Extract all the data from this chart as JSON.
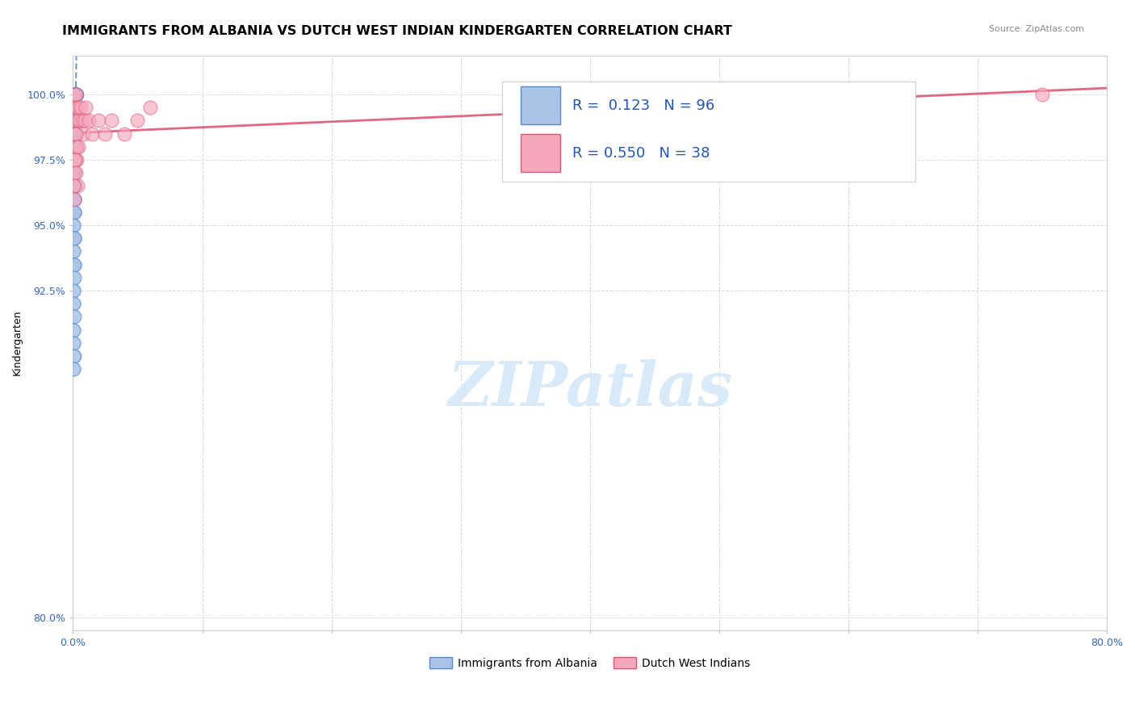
{
  "title": "IMMIGRANTS FROM ALBANIA VS DUTCH WEST INDIAN KINDERGARTEN CORRELATION CHART",
  "source": "Source: ZipAtlas.com",
  "ylabel": "Kindergarten",
  "xlim": [
    0.0,
    80.0
  ],
  "ylim": [
    79.5,
    101.5
  ],
  "xticks": [
    0.0,
    10.0,
    20.0,
    30.0,
    40.0,
    50.0,
    60.0,
    70.0,
    80.0
  ],
  "xticklabels": [
    "0.0%",
    "",
    "",
    "",
    "",
    "",
    "",
    "",
    "80.0%"
  ],
  "yticks": [
    80.0,
    92.5,
    95.0,
    97.5,
    100.0
  ],
  "yticklabels": [
    "80.0%",
    "92.5%",
    "95.0%",
    "97.5%",
    "100.0%"
  ],
  "albania_R": 0.123,
  "albania_N": 96,
  "dutch_R": 0.55,
  "dutch_N": 38,
  "albania_color": "#aac4e8",
  "dutch_color": "#f5a8bc",
  "albania_edge_color": "#5588cc",
  "dutch_edge_color": "#e05575",
  "albania_line_color": "#5588cc",
  "dutch_line_color": "#e05575",
  "legend_R_color": "#2255bb",
  "tick_color": "#3366cc",
  "background_color": "#ffffff",
  "grid_color": "#cccccc",
  "watermark_text": "ZIPatlas",
  "watermark_color": "#d8eaf8",
  "title_fontsize": 11.5,
  "axis_label_fontsize": 9,
  "tick_fontsize": 9,
  "legend_fontsize": 13,
  "albania_x": [
    0.05,
    0.08,
    0.1,
    0.12,
    0.15,
    0.18,
    0.2,
    0.22,
    0.25,
    0.28,
    0.1,
    0.12,
    0.14,
    0.16,
    0.18,
    0.2,
    0.22,
    0.25,
    0.08,
    0.1,
    0.12,
    0.15,
    0.18,
    0.22,
    0.08,
    0.1,
    0.12,
    0.14,
    0.16,
    0.18,
    0.05,
    0.07,
    0.09,
    0.11,
    0.13,
    0.16,
    0.2,
    0.05,
    0.08,
    0.12,
    0.15,
    0.18,
    0.22,
    0.26,
    0.05,
    0.07,
    0.09,
    0.12,
    0.15,
    0.18,
    0.05,
    0.07,
    0.1,
    0.12,
    0.05,
    0.07,
    0.09,
    0.12,
    0.15,
    0.05,
    0.07,
    0.09,
    0.11,
    0.04,
    0.06,
    0.08,
    0.1,
    0.12,
    0.04,
    0.06,
    0.04,
    0.06,
    0.08,
    0.1,
    0.04,
    0.06,
    0.05,
    0.07,
    0.09,
    0.04,
    0.04,
    0.06,
    0.1,
    0.04,
    0.05,
    0.06,
    0.08,
    0.03,
    0.04,
    0.05,
    0.06,
    0.08,
    0.03,
    0.04,
    0.05,
    0.1
  ],
  "albania_y": [
    100.0,
    100.0,
    100.0,
    100.0,
    100.0,
    100.0,
    100.0,
    100.0,
    100.0,
    100.0,
    100.0,
    100.0,
    100.0,
    100.0,
    100.0,
    100.0,
    100.0,
    100.0,
    99.5,
    99.5,
    99.5,
    99.5,
    99.5,
    99.5,
    99.0,
    99.0,
    99.0,
    99.0,
    99.0,
    99.0,
    98.5,
    98.5,
    98.5,
    98.5,
    98.5,
    98.5,
    98.5,
    98.0,
    98.0,
    98.0,
    98.0,
    98.0,
    98.0,
    98.0,
    97.5,
    97.5,
    97.5,
    97.5,
    97.5,
    97.5,
    97.0,
    97.0,
    97.0,
    97.0,
    96.5,
    96.5,
    96.5,
    96.5,
    96.5,
    96.0,
    96.0,
    96.0,
    96.0,
    95.5,
    95.5,
    95.5,
    95.5,
    95.5,
    95.0,
    95.0,
    94.5,
    94.5,
    94.5,
    94.5,
    94.0,
    94.0,
    93.5,
    93.5,
    93.5,
    93.0,
    92.5,
    92.5,
    93.0,
    92.0,
    92.0,
    91.5,
    91.5,
    91.0,
    91.0,
    90.5,
    90.5,
    90.0,
    90.0,
    89.5,
    89.5,
    94.5
  ],
  "dutch_x": [
    0.05,
    0.08,
    0.12,
    0.15,
    0.18,
    0.22,
    0.25,
    0.3,
    0.35,
    0.4,
    0.5,
    0.6,
    0.7,
    0.8,
    0.9,
    1.0,
    1.2,
    1.5,
    2.0,
    2.5,
    3.0,
    4.0,
    5.0,
    6.0,
    0.1,
    0.15,
    0.2,
    0.25,
    0.3,
    0.4,
    0.08,
    0.12,
    0.18,
    0.25,
    0.35,
    75.0,
    0.05,
    0.08
  ],
  "dutch_y": [
    99.5,
    99.0,
    100.0,
    99.5,
    99.0,
    99.5,
    100.0,
    99.5,
    99.0,
    99.5,
    99.0,
    99.5,
    99.0,
    98.5,
    99.0,
    99.5,
    99.0,
    98.5,
    99.0,
    98.5,
    99.0,
    98.5,
    99.0,
    99.5,
    98.5,
    98.0,
    98.5,
    98.0,
    97.5,
    98.0,
    97.5,
    97.0,
    97.5,
    97.0,
    96.5,
    100.0,
    96.5,
    96.0
  ]
}
